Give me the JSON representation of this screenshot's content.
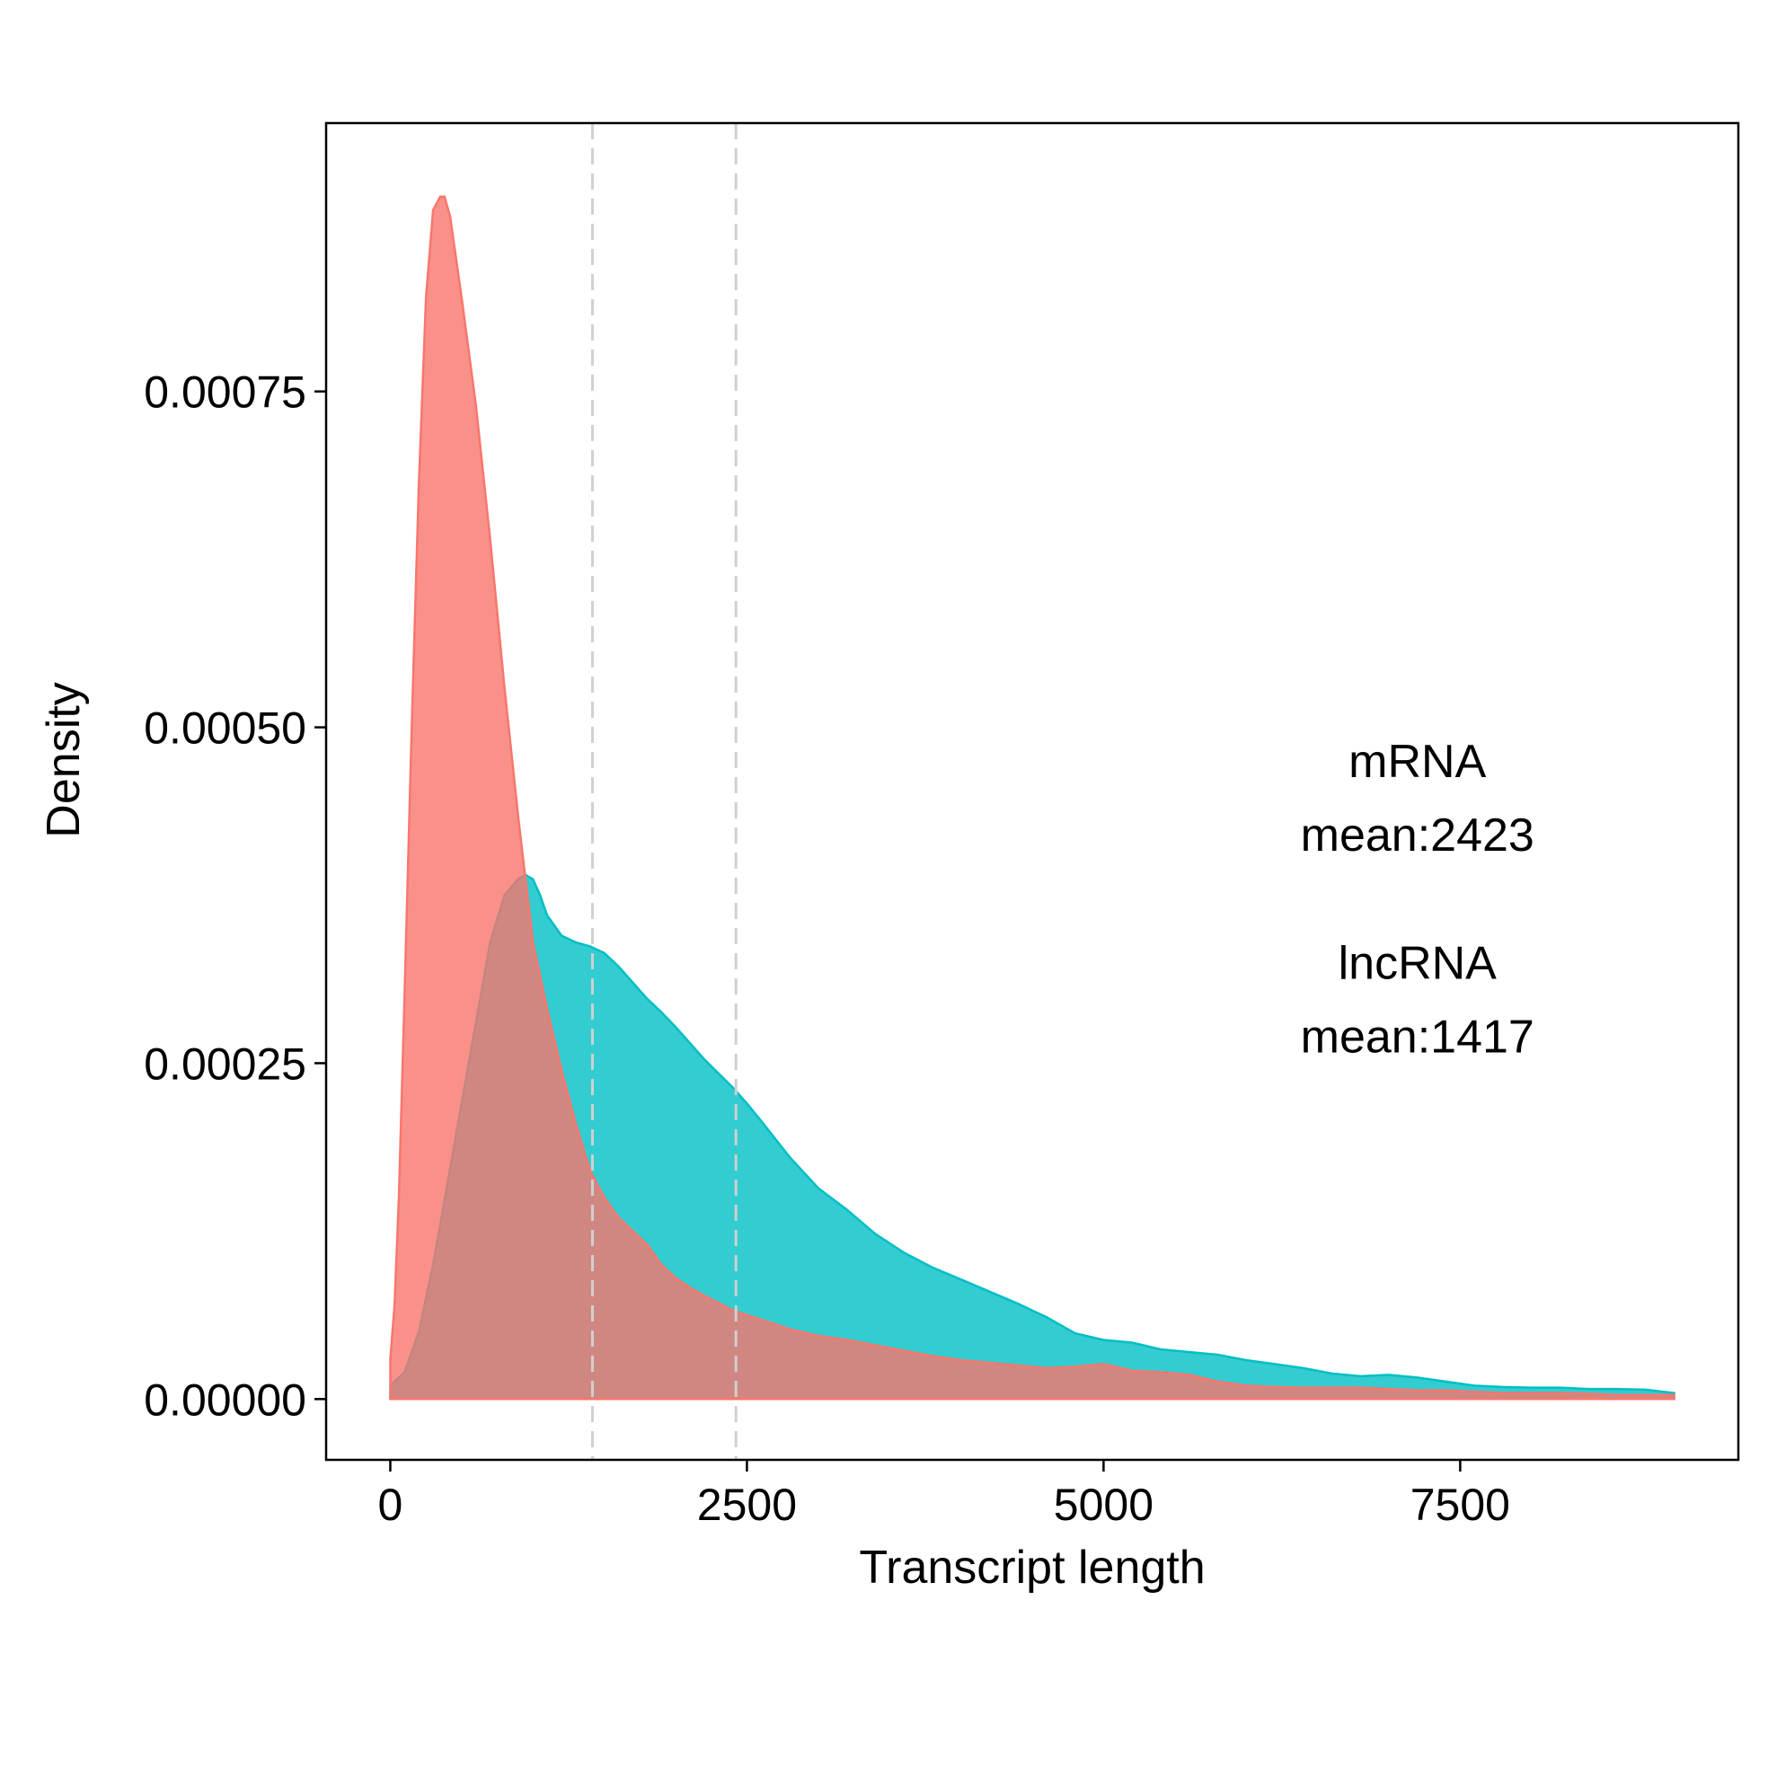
{
  "chart_data": {
    "type": "area",
    "title": "",
    "xlabel": "Transcript length",
    "ylabel": "Density",
    "xlim": [
      -450,
      9450
    ],
    "ylim": [
      -4.525e-05,
      0.00094975
    ],
    "x_ticks": [
      0,
      2500,
      5000,
      7500
    ],
    "x_tick_labels": [
      "0",
      "2500",
      "5000",
      "7500"
    ],
    "y_ticks": [
      0,
      0.00025,
      0.0005,
      0.00075
    ],
    "y_tick_labels": [
      "0.00000",
      "0.00025",
      "0.00050",
      "0.00075"
    ],
    "grid": false,
    "legend": "none",
    "series": [
      {
        "color": "#00BFC4",
        "x": [
          0,
          100,
          200,
          300,
          400,
          500,
          600,
          700,
          800,
          900,
          950,
          1000,
          1050,
          1100,
          1200,
          1300,
          1400,
          1500,
          1600,
          1700,
          1800,
          1900,
          2000,
          2200,
          2400,
          2500,
          2600,
          2800,
          3000,
          3200,
          3400,
          3600,
          3800,
          4000,
          4200,
          4400,
          4600,
          4800,
          5000,
          5200,
          5400,
          5600,
          5800,
          6000,
          6200,
          6400,
          6600,
          6800,
          7000,
          7200,
          7400,
          7600,
          7800,
          8000,
          8200,
          8400,
          8600,
          8800,
          9000
        ],
        "y": [
          1e-05,
          2e-05,
          5e-05,
          0.0001,
          0.00016,
          0.00022,
          0.00028,
          0.00034,
          0.000375,
          0.0003875,
          0.00039,
          0.000387,
          0.000375,
          0.00036,
          0.000345,
          0.00034,
          0.000337,
          0.000332,
          0.000322,
          0.00031,
          0.000298,
          0.000288,
          0.000277,
          0.000253,
          0.000232,
          0.00022,
          0.000207,
          0.00018,
          0.000157,
          0.000141,
          0.000123,
          0.000109,
          9.8e-05,
          8.9e-05,
          8e-05,
          7.1e-05,
          6.1e-05,
          4.9e-05,
          4.4e-05,
          4.2e-05,
          3.7e-05,
          3.5e-05,
          3.3e-05,
          2.9e-05,
          2.6e-05,
          2.3e-05,
          1.9e-05,
          1.7e-05,
          1.8e-05,
          1.6e-05,
          1.3e-05,
          1e-05,
          9e-06,
          8.5e-06,
          8.5e-06,
          7.5e-06,
          7.5e-06,
          7e-06,
          4.5e-06
        ]
      },
      {
        "color": "#F8766D",
        "x": [
          0,
          30,
          60,
          100,
          150,
          200,
          250,
          300,
          350,
          380,
          420,
          500,
          600,
          700,
          800,
          900,
          1000,
          1100,
          1200,
          1300,
          1400,
          1500,
          1600,
          1700,
          1800,
          1900,
          2000,
          2100,
          2200,
          2400,
          2600,
          2800,
          3000,
          3200,
          3400,
          3600,
          3800,
          4000,
          4200,
          4400,
          4600,
          4800,
          5000,
          5200,
          5400,
          5600,
          5800,
          6000,
          6200,
          6400,
          6600,
          6800,
          7000,
          7200,
          7400,
          7600,
          7800,
          8000,
          8200,
          8400,
          8600,
          8800,
          9000
        ],
        "y": [
          3e-05,
          7e-05,
          0.00015,
          0.0003,
          0.0005,
          0.00068,
          0.00082,
          0.000885,
          0.000895,
          0.000895,
          0.00088,
          0.00082,
          0.00074,
          0.00064,
          0.00053,
          0.00043,
          0.00034,
          0.00029,
          0.000245,
          0.000205,
          0.00017,
          0.00015,
          0.000135,
          0.000125,
          0.000115,
          0.0001,
          9e-05,
          8.3e-05,
          7.7e-05,
          6.6e-05,
          5.9e-05,
          5.2e-05,
          4.7e-05,
          4.4e-05,
          4e-05,
          3.6e-05,
          3.2e-05,
          2.9e-05,
          2.7e-05,
          2.5e-05,
          2.3e-05,
          2.4e-05,
          2.6e-05,
          2.1e-05,
          2e-05,
          1.8e-05,
          1.3e-05,
          1e-05,
          9e-06,
          8.5e-06,
          8.5e-06,
          8.5e-06,
          7.5e-06,
          6.5e-06,
          6.5e-06,
          5.5e-06,
          4.5e-06,
          4.5e-06,
          4.5e-06,
          4e-06,
          3e-06,
          3e-06,
          3e-06
        ]
      }
    ],
    "vlines": [
      1417,
      2423
    ],
    "annotations": [
      {
        "x": 7200,
        "y": 0.000475,
        "text": "mRNA"
      },
      {
        "x": 7200,
        "y": 0.00042,
        "text": "mean:2423"
      },
      {
        "x": 7200,
        "y": 0.000325,
        "text": "lncRNA"
      },
      {
        "x": 7200,
        "y": 0.00027,
        "text": "mean:1417"
      }
    ]
  }
}
